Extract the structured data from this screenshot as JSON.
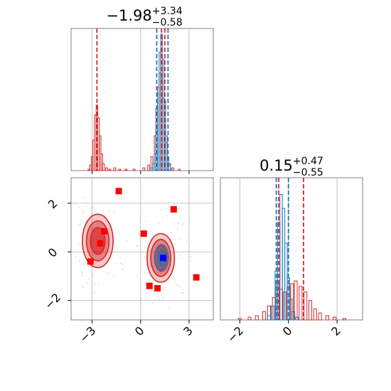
{
  "chart_data": [
    {
      "panel": "top-left",
      "type": "histogram",
      "parameter": "x",
      "title": {
        "main": "−1.98",
        "sup": "+3.34",
        "sub": "−0.58"
      },
      "xlim": [
        -4.3,
        4.5
      ],
      "x_ticks": [
        -3,
        0,
        3
      ],
      "y_ticks": [],
      "grid": true,
      "series": [
        {
          "color": "#d62728",
          "bins": [
            {
              "x": -3.2,
              "y": 0.01
            },
            {
              "x": -3.1,
              "y": 0.04
            },
            {
              "x": -3.0,
              "y": 0.1
            },
            {
              "x": -2.9,
              "y": 0.22
            },
            {
              "x": -2.8,
              "y": 0.4
            },
            {
              "x": -2.7,
              "y": 0.47
            },
            {
              "x": -2.6,
              "y": 0.38
            },
            {
              "x": -2.5,
              "y": 0.25
            },
            {
              "x": -2.4,
              "y": 0.12
            },
            {
              "x": -2.3,
              "y": 0.05
            },
            {
              "x": -2.1,
              "y": 0.02
            },
            {
              "x": -1.9,
              "y": 0.01
            },
            {
              "x": -1.6,
              "y": 0.02
            },
            {
              "x": -1.3,
              "y": 0.01
            },
            {
              "x": -0.9,
              "y": 0.01
            },
            {
              "x": -0.4,
              "y": 0.01
            },
            {
              "x": 0.2,
              "y": 0.02
            },
            {
              "x": 0.5,
              "y": 0.04
            },
            {
              "x": 0.7,
              "y": 0.1
            },
            {
              "x": 0.9,
              "y": 0.25
            },
            {
              "x": 1.0,
              "y": 0.45
            },
            {
              "x": 1.1,
              "y": 0.6
            },
            {
              "x": 1.2,
              "y": 0.7
            },
            {
              "x": 1.3,
              "y": 0.66
            },
            {
              "x": 1.4,
              "y": 0.52
            },
            {
              "x": 1.5,
              "y": 0.35
            },
            {
              "x": 1.6,
              "y": 0.2
            },
            {
              "x": 1.7,
              "y": 0.1
            },
            {
              "x": 1.8,
              "y": 0.05
            },
            {
              "x": 2.0,
              "y": 0.02
            },
            {
              "x": 2.4,
              "y": 0.01
            }
          ]
        },
        {
          "color": "#1f77b4",
          "bins": [
            {
              "x": 0.7,
              "y": 0.02
            },
            {
              "x": 0.8,
              "y": 0.05
            },
            {
              "x": 0.9,
              "y": 0.12
            },
            {
              "x": 1.0,
              "y": 0.3
            },
            {
              "x": 1.1,
              "y": 0.55
            },
            {
              "x": 1.2,
              "y": 0.85
            },
            {
              "x": 1.3,
              "y": 0.98
            },
            {
              "x": 1.4,
              "y": 0.8
            },
            {
              "x": 1.5,
              "y": 0.5
            },
            {
              "x": 1.6,
              "y": 0.25
            },
            {
              "x": 1.7,
              "y": 0.1
            },
            {
              "x": 1.8,
              "y": 0.04
            },
            {
              "x": 1.9,
              "y": 0.01
            }
          ]
        }
      ],
      "vlines": [
        {
          "x": -2.7,
          "color": "#d62728"
        },
        {
          "x": 1.0,
          "color": "#1f77b4"
        },
        {
          "x": 1.7,
          "color": "#1f77b4"
        },
        {
          "x": 1.3,
          "color": "#d62728"
        },
        {
          "x": 1.5,
          "color": "#d62728"
        }
      ]
    },
    {
      "panel": "bottom-left",
      "type": "scatter",
      "xlim": [
        -4.3,
        4.5
      ],
      "ylim": [
        -2.8,
        3.05
      ],
      "x_ticks": [
        -3,
        0,
        3
      ],
      "y_ticks": [
        -2,
        0,
        2
      ],
      "grid": true,
      "contour_groups": [
        {
          "color": "#d62728",
          "cx": -2.65,
          "cy": 0.45,
          "levels": [
            [
              0.95,
              1.1
            ],
            [
              0.7,
              0.82
            ],
            [
              0.45,
              0.55
            ]
          ]
        },
        {
          "color": "#d62728",
          "cx": 1.25,
          "cy": -0.25,
          "levels": [
            [
              0.85,
              1.0
            ],
            [
              0.62,
              0.76
            ],
            [
              0.38,
              0.5
            ]
          ]
        },
        {
          "color": "#1f77b4",
          "cx": 1.3,
          "cy": -0.25,
          "levels": [
            [
              0.42,
              0.55
            ],
            [
              0.22,
              0.32
            ]
          ]
        }
      ],
      "square_markers": [
        {
          "x": -1.35,
          "y": 2.5
        },
        {
          "x": 2.05,
          "y": 1.75
        },
        {
          "x": -2.25,
          "y": 0.85
        },
        {
          "x": 0.2,
          "y": 0.75
        },
        {
          "x": -2.5,
          "y": 0.35
        },
        {
          "x": -3.1,
          "y": -0.4
        },
        {
          "x": 3.45,
          "y": -1.05
        },
        {
          "x": 0.55,
          "y": -1.4
        },
        {
          "x": 1.05,
          "y": -1.5
        }
      ],
      "marker_color": "#ff0000",
      "truth": {
        "x": 1.4,
        "y": -0.25,
        "color": "#0000ff"
      }
    },
    {
      "panel": "bottom-right",
      "type": "histogram",
      "parameter": "y",
      "title": {
        "main": "0.15",
        "sup": "+0.47",
        "sub": "−0.55"
      },
      "xlim": [
        -2.8,
        3.05
      ],
      "x_ticks": [
        -2,
        0,
        2
      ],
      "y_ticks": [],
      "grid": true,
      "series": [
        {
          "color": "#d62728",
          "bins": [
            {
              "x": -2.0,
              "y": 0.01
            },
            {
              "x": -1.6,
              "y": 0.02
            },
            {
              "x": -1.3,
              "y": 0.03
            },
            {
              "x": -1.0,
              "y": 0.06
            },
            {
              "x": -0.8,
              "y": 0.1
            },
            {
              "x": -0.6,
              "y": 0.16
            },
            {
              "x": -0.45,
              "y": 0.28
            },
            {
              "x": -0.3,
              "y": 0.22
            },
            {
              "x": -0.15,
              "y": 0.2
            },
            {
              "x": 0.0,
              "y": 0.24
            },
            {
              "x": 0.15,
              "y": 0.26
            },
            {
              "x": 0.3,
              "y": 0.28
            },
            {
              "x": 0.5,
              "y": 0.24
            },
            {
              "x": 0.7,
              "y": 0.2
            },
            {
              "x": 0.9,
              "y": 0.14
            },
            {
              "x": 1.1,
              "y": 0.08
            },
            {
              "x": 1.3,
              "y": 0.05
            },
            {
              "x": 1.6,
              "y": 0.03
            },
            {
              "x": 1.9,
              "y": 0.02
            },
            {
              "x": 2.3,
              "y": 0.01
            }
          ]
        },
        {
          "color": "#1f77b4",
          "bins": [
            {
              "x": -0.8,
              "y": 0.03
            },
            {
              "x": -0.65,
              "y": 0.1
            },
            {
              "x": -0.5,
              "y": 0.35
            },
            {
              "x": -0.4,
              "y": 0.7
            },
            {
              "x": -0.3,
              "y": 0.9
            },
            {
              "x": -0.2,
              "y": 0.8
            },
            {
              "x": -0.1,
              "y": 0.55
            },
            {
              "x": 0.0,
              "y": 0.3
            },
            {
              "x": 0.1,
              "y": 0.15
            },
            {
              "x": 0.2,
              "y": 0.06
            },
            {
              "x": 0.35,
              "y": 0.02
            }
          ]
        }
      ],
      "vlines": [
        {
          "x": -0.4,
          "color": "#d62728"
        },
        {
          "x": 0.62,
          "color": "#d62728"
        },
        {
          "x": -0.5,
          "color": "#1f77b4"
        },
        {
          "x": 0.0,
          "color": "#1f77b4"
        }
      ]
    }
  ]
}
